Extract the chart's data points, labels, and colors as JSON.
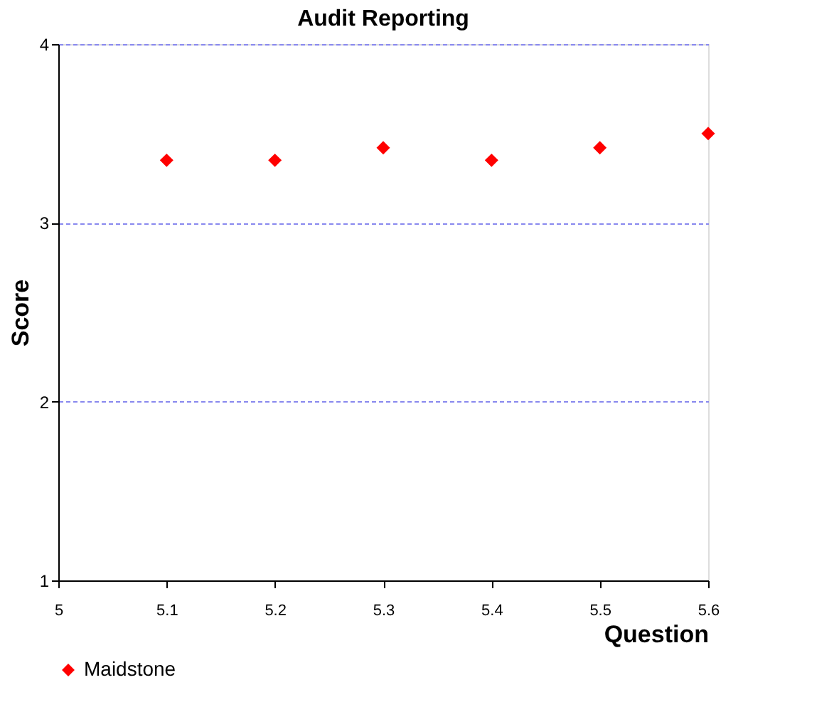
{
  "chart_data": {
    "type": "scatter",
    "title": "Audit Reporting",
    "xlabel": "Question",
    "ylabel": "Score",
    "categories": [
      "5",
      "5.1",
      "5.2",
      "5.3",
      "5.4",
      "5.5",
      "5.6"
    ],
    "series": [
      {
        "name": "Maidstone",
        "color": "#ff0000",
        "values": [
          null,
          3.35,
          3.35,
          3.42,
          3.35,
          3.42,
          3.5
        ]
      }
    ],
    "ylim": [
      1,
      4
    ],
    "yticks": [
      1,
      2,
      3,
      4
    ],
    "grid": "y",
    "legend": "bottom",
    "marker": "diamond"
  }
}
